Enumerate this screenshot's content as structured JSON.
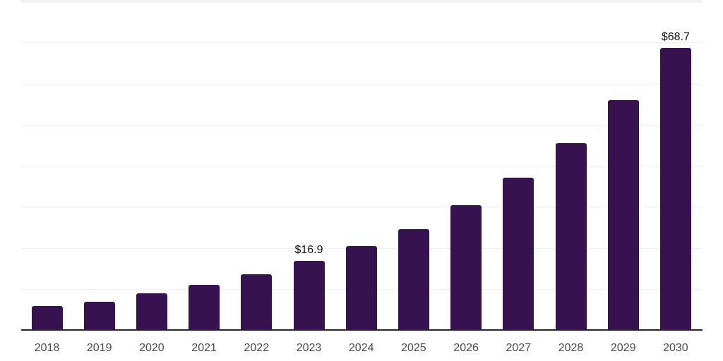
{
  "chart_data": {
    "type": "bar",
    "title": "",
    "xlabel": "",
    "ylabel": "",
    "categories": [
      "2018",
      "2019",
      "2020",
      "2021",
      "2022",
      "2023",
      "2024",
      "2025",
      "2026",
      "2027",
      "2028",
      "2029",
      "2030"
    ],
    "values": [
      5.9,
      6.9,
      8.9,
      11.0,
      13.6,
      16.9,
      20.4,
      24.6,
      30.4,
      37.1,
      45.5,
      56.0,
      68.7
    ],
    "data_labels": [
      "",
      "",
      "",
      "",
      "",
      "$16.9",
      "",
      "",
      "",
      "",
      "",
      "",
      "$68.7"
    ],
    "unit_prefix": "$",
    "ylim": [
      0,
      80
    ],
    "gridline_step": 10,
    "grid": "horizontal",
    "y_tick_labels_shown": false,
    "legend": "none",
    "colors": {
      "bar": "#361350",
      "axis_line": "#26262b",
      "gridline": "#f0f0f3",
      "top_gridline_band": "#f2f2f5",
      "value_label_text": "#141418",
      "tick_label_text": "#4b4b51",
      "background": "#ffffff"
    }
  }
}
